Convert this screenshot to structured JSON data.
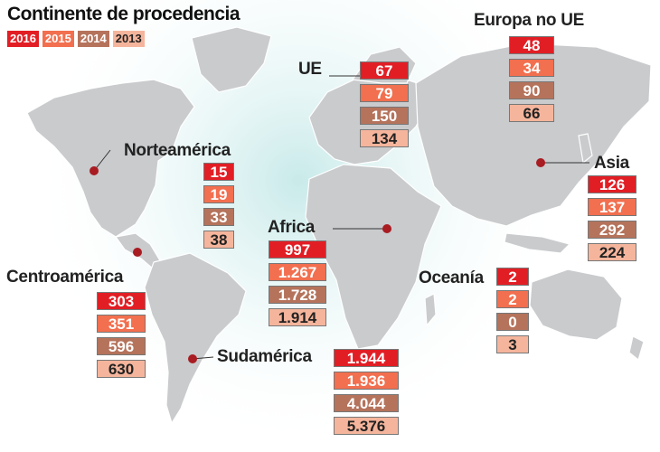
{
  "title": "Continente de procedencia",
  "colors": [
    "#e21e25",
    "#f26f4f",
    "#b5735c",
    "#f5b59c"
  ],
  "chart_data": {
    "type": "table",
    "title": "Continente de procedencia",
    "series_years": [
      "2016",
      "2015",
      "2014",
      "2013"
    ],
    "regions": [
      {
        "name": "Norteamérica",
        "values": [
          "15",
          "19",
          "33",
          "38"
        ]
      },
      {
        "name": "Centroamérica",
        "values": [
          "303",
          "351",
          "596",
          "630"
        ]
      },
      {
        "name": "Sudamérica",
        "values": [
          "1.944",
          "1.936",
          "4.044",
          "5.376"
        ]
      },
      {
        "name": "Africa",
        "values": [
          "997",
          "1.267",
          "1.728",
          "1.914"
        ]
      },
      {
        "name": "UE",
        "values": [
          "67",
          "79",
          "150",
          "134"
        ]
      },
      {
        "name": "Europa no UE",
        "values": [
          "48",
          "34",
          "90",
          "66"
        ]
      },
      {
        "name": "Asia",
        "values": [
          "126",
          "137",
          "292",
          "224"
        ]
      },
      {
        "name": "Oceanía",
        "values": [
          "2",
          "2",
          "0",
          "3"
        ]
      }
    ]
  }
}
